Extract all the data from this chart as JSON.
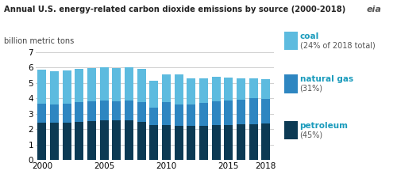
{
  "years": [
    2000,
    2001,
    2002,
    2003,
    2004,
    2005,
    2006,
    2007,
    2008,
    2009,
    2010,
    2011,
    2012,
    2013,
    2014,
    2015,
    2016,
    2017,
    2018
  ],
  "petroleum": [
    2.42,
    2.42,
    2.44,
    2.49,
    2.51,
    2.55,
    2.55,
    2.55,
    2.45,
    2.24,
    2.26,
    2.23,
    2.19,
    2.22,
    2.26,
    2.28,
    2.3,
    2.32,
    2.35
  ],
  "natural_gas": [
    1.22,
    1.17,
    1.19,
    1.27,
    1.29,
    1.3,
    1.27,
    1.32,
    1.31,
    1.17,
    1.48,
    1.39,
    1.4,
    1.5,
    1.55,
    1.6,
    1.62,
    1.67,
    1.63
  ],
  "coal": [
    2.2,
    2.17,
    2.16,
    2.13,
    2.17,
    2.17,
    2.16,
    2.16,
    2.14,
    1.75,
    1.83,
    1.95,
    1.72,
    1.59,
    1.57,
    1.46,
    1.36,
    1.31,
    1.27
  ],
  "color_petroleum": "#0c3a54",
  "color_natural_gas": "#2e86c1",
  "color_coal": "#5dbbdf",
  "title": "Annual U.S. energy-related carbon dioxide emissions by source (2000-2018)",
  "ylabel": "billion metric tons",
  "ylim": [
    0,
    7
  ],
  "yticks": [
    0,
    1,
    2,
    3,
    4,
    5,
    6,
    7
  ],
  "background_color": "#ffffff",
  "grid_color": "#d0d0d0",
  "legend_items": [
    {
      "color": "#5dbbdf",
      "label1": "coal",
      "label2": "(24% of 2018 total)"
    },
    {
      "color": "#2e86c1",
      "label1": "natural gas",
      "label2": "(31%)"
    },
    {
      "color": "#0c3a54",
      "label1": "petroleum",
      "label2": "(45%)"
    }
  ],
  "legend_text_color": "#1a9bbc",
  "legend_sub_color": "#555555",
  "eia_logo_color": "#555555"
}
